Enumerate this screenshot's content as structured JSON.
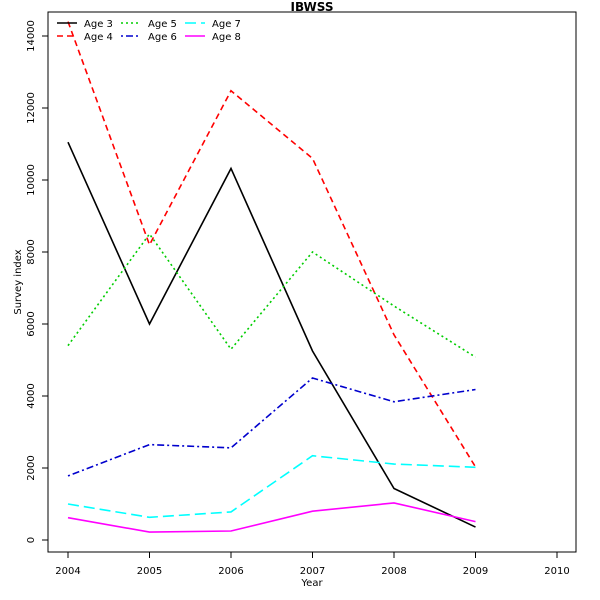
{
  "chart_data": {
    "type": "line",
    "title": "IBWSS",
    "xlabel": "Year",
    "ylabel": "Survey index",
    "xlim": [
      2004,
      2010
    ],
    "ylim": [
      0,
      14000
    ],
    "xticks": [
      2004,
      2005,
      2006,
      2007,
      2008,
      2009,
      2010
    ],
    "yticks": [
      0,
      2000,
      4000,
      6000,
      8000,
      10000,
      12000,
      14000
    ],
    "legend_position": "top-left",
    "grid": false,
    "x": [
      2004,
      2005,
      2006,
      2007,
      2008,
      2009
    ],
    "series": [
      {
        "name": "Age 3",
        "color": "#000000",
        "dash": "solid",
        "values": [
          11050,
          6000,
          10320,
          5250,
          1430,
          360
        ]
      },
      {
        "name": "Age 4",
        "color": "#ff0000",
        "dash": "dashed",
        "values": [
          14400,
          8200,
          12480,
          10600,
          5700,
          2030
        ]
      },
      {
        "name": "Age 5",
        "color": "#00cd00",
        "dash": "dotted",
        "values": [
          5400,
          8500,
          5300,
          8000,
          6500,
          5080
        ]
      },
      {
        "name": "Age 6",
        "color": "#0000cd",
        "dash": "dotdash",
        "values": [
          1780,
          2650,
          2560,
          4500,
          3840,
          4180
        ]
      },
      {
        "name": "Age 7",
        "color": "#00ffff",
        "dash": "longdash",
        "values": [
          1000,
          630,
          780,
          2340,
          2110,
          2020
        ]
      },
      {
        "name": "Age 8",
        "color": "#ff00ff",
        "dash": "solid",
        "values": [
          620,
          220,
          250,
          800,
          1030,
          510
        ]
      }
    ]
  }
}
